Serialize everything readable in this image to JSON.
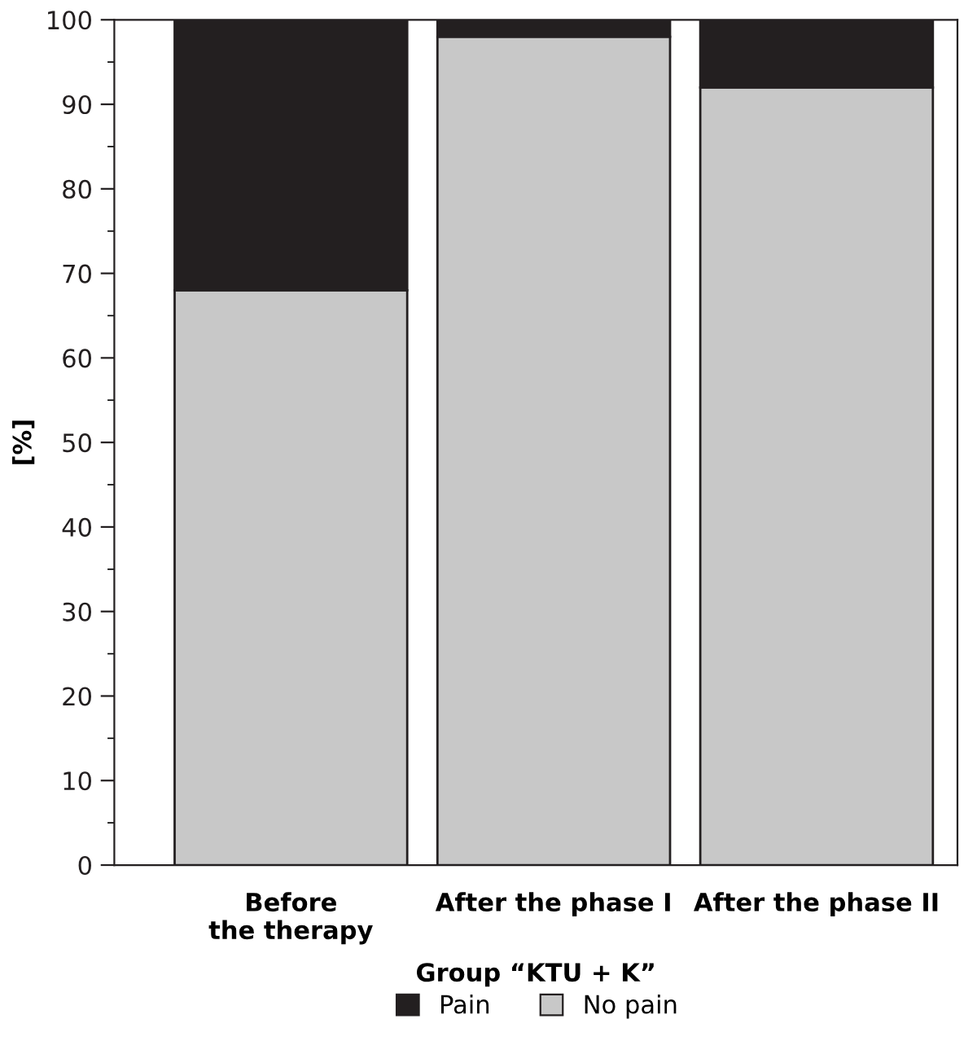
{
  "chart_data": {
    "type": "bar",
    "stacked": true,
    "xlabel": "Group “KTU + K”",
    "ylabel": "[%]",
    "categories": [
      "Before\nthe therapy",
      "After the phase I",
      "After the phase II"
    ],
    "series": [
      {
        "name": "No pain",
        "color": "#c8c8c8",
        "values": [
          68,
          98,
          92
        ]
      },
      {
        "name": "Pain",
        "color": "#231f20",
        "values": [
          32,
          2,
          8
        ]
      }
    ],
    "ylim": [
      0,
      100
    ],
    "yticks": [
      0,
      10,
      20,
      30,
      40,
      50,
      60,
      70,
      80,
      90,
      100
    ],
    "legend": "bottom",
    "grid": false
  }
}
